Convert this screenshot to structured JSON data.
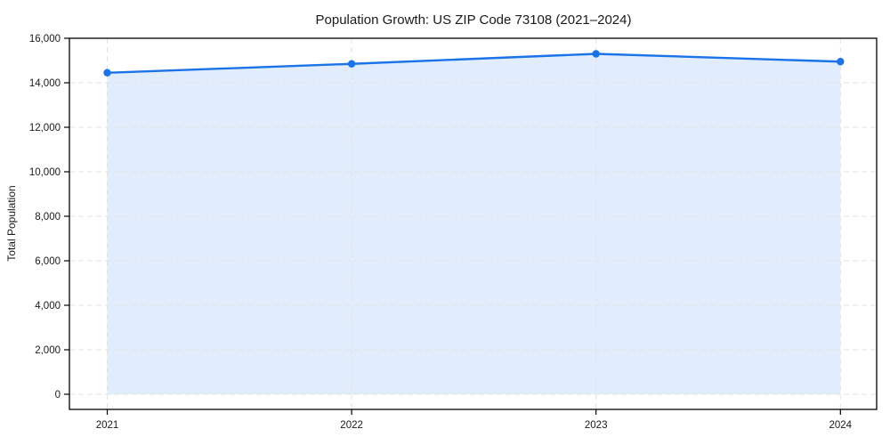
{
  "page": {
    "background": "#ffffff"
  },
  "chart_data": {
    "type": "area",
    "title": "Population Growth: US ZIP Code 73108 (2021–2024)",
    "xlabel": "",
    "ylabel": "Total Population",
    "x": [
      "2021",
      "2022",
      "2023",
      "2024"
    ],
    "values": [
      14450,
      14850,
      15300,
      14950
    ],
    "xtick_labels": [
      "2021",
      "2022",
      "2023",
      "2024"
    ],
    "yticks": [
      0,
      2000,
      4000,
      6000,
      8000,
      10000,
      12000,
      14000,
      16000
    ],
    "ytick_labels": [
      "0",
      "2,000",
      "4,000",
      "6,000",
      "8,000",
      "10,000",
      "12,000",
      "14,000",
      "16,000"
    ],
    "ylim": [
      -680,
      16000
    ],
    "xlim": [
      2020.85,
      2024.15
    ],
    "grid": "dashed",
    "legend": "none",
    "marker": "circle",
    "colors": {
      "line": "#1a73e8",
      "marker": "#1a73e8",
      "fill": "#e1edfc",
      "grid": "#e3e3e3",
      "spine": "#000000",
      "text": "#1a1a1a",
      "background": "#ffffff"
    }
  }
}
